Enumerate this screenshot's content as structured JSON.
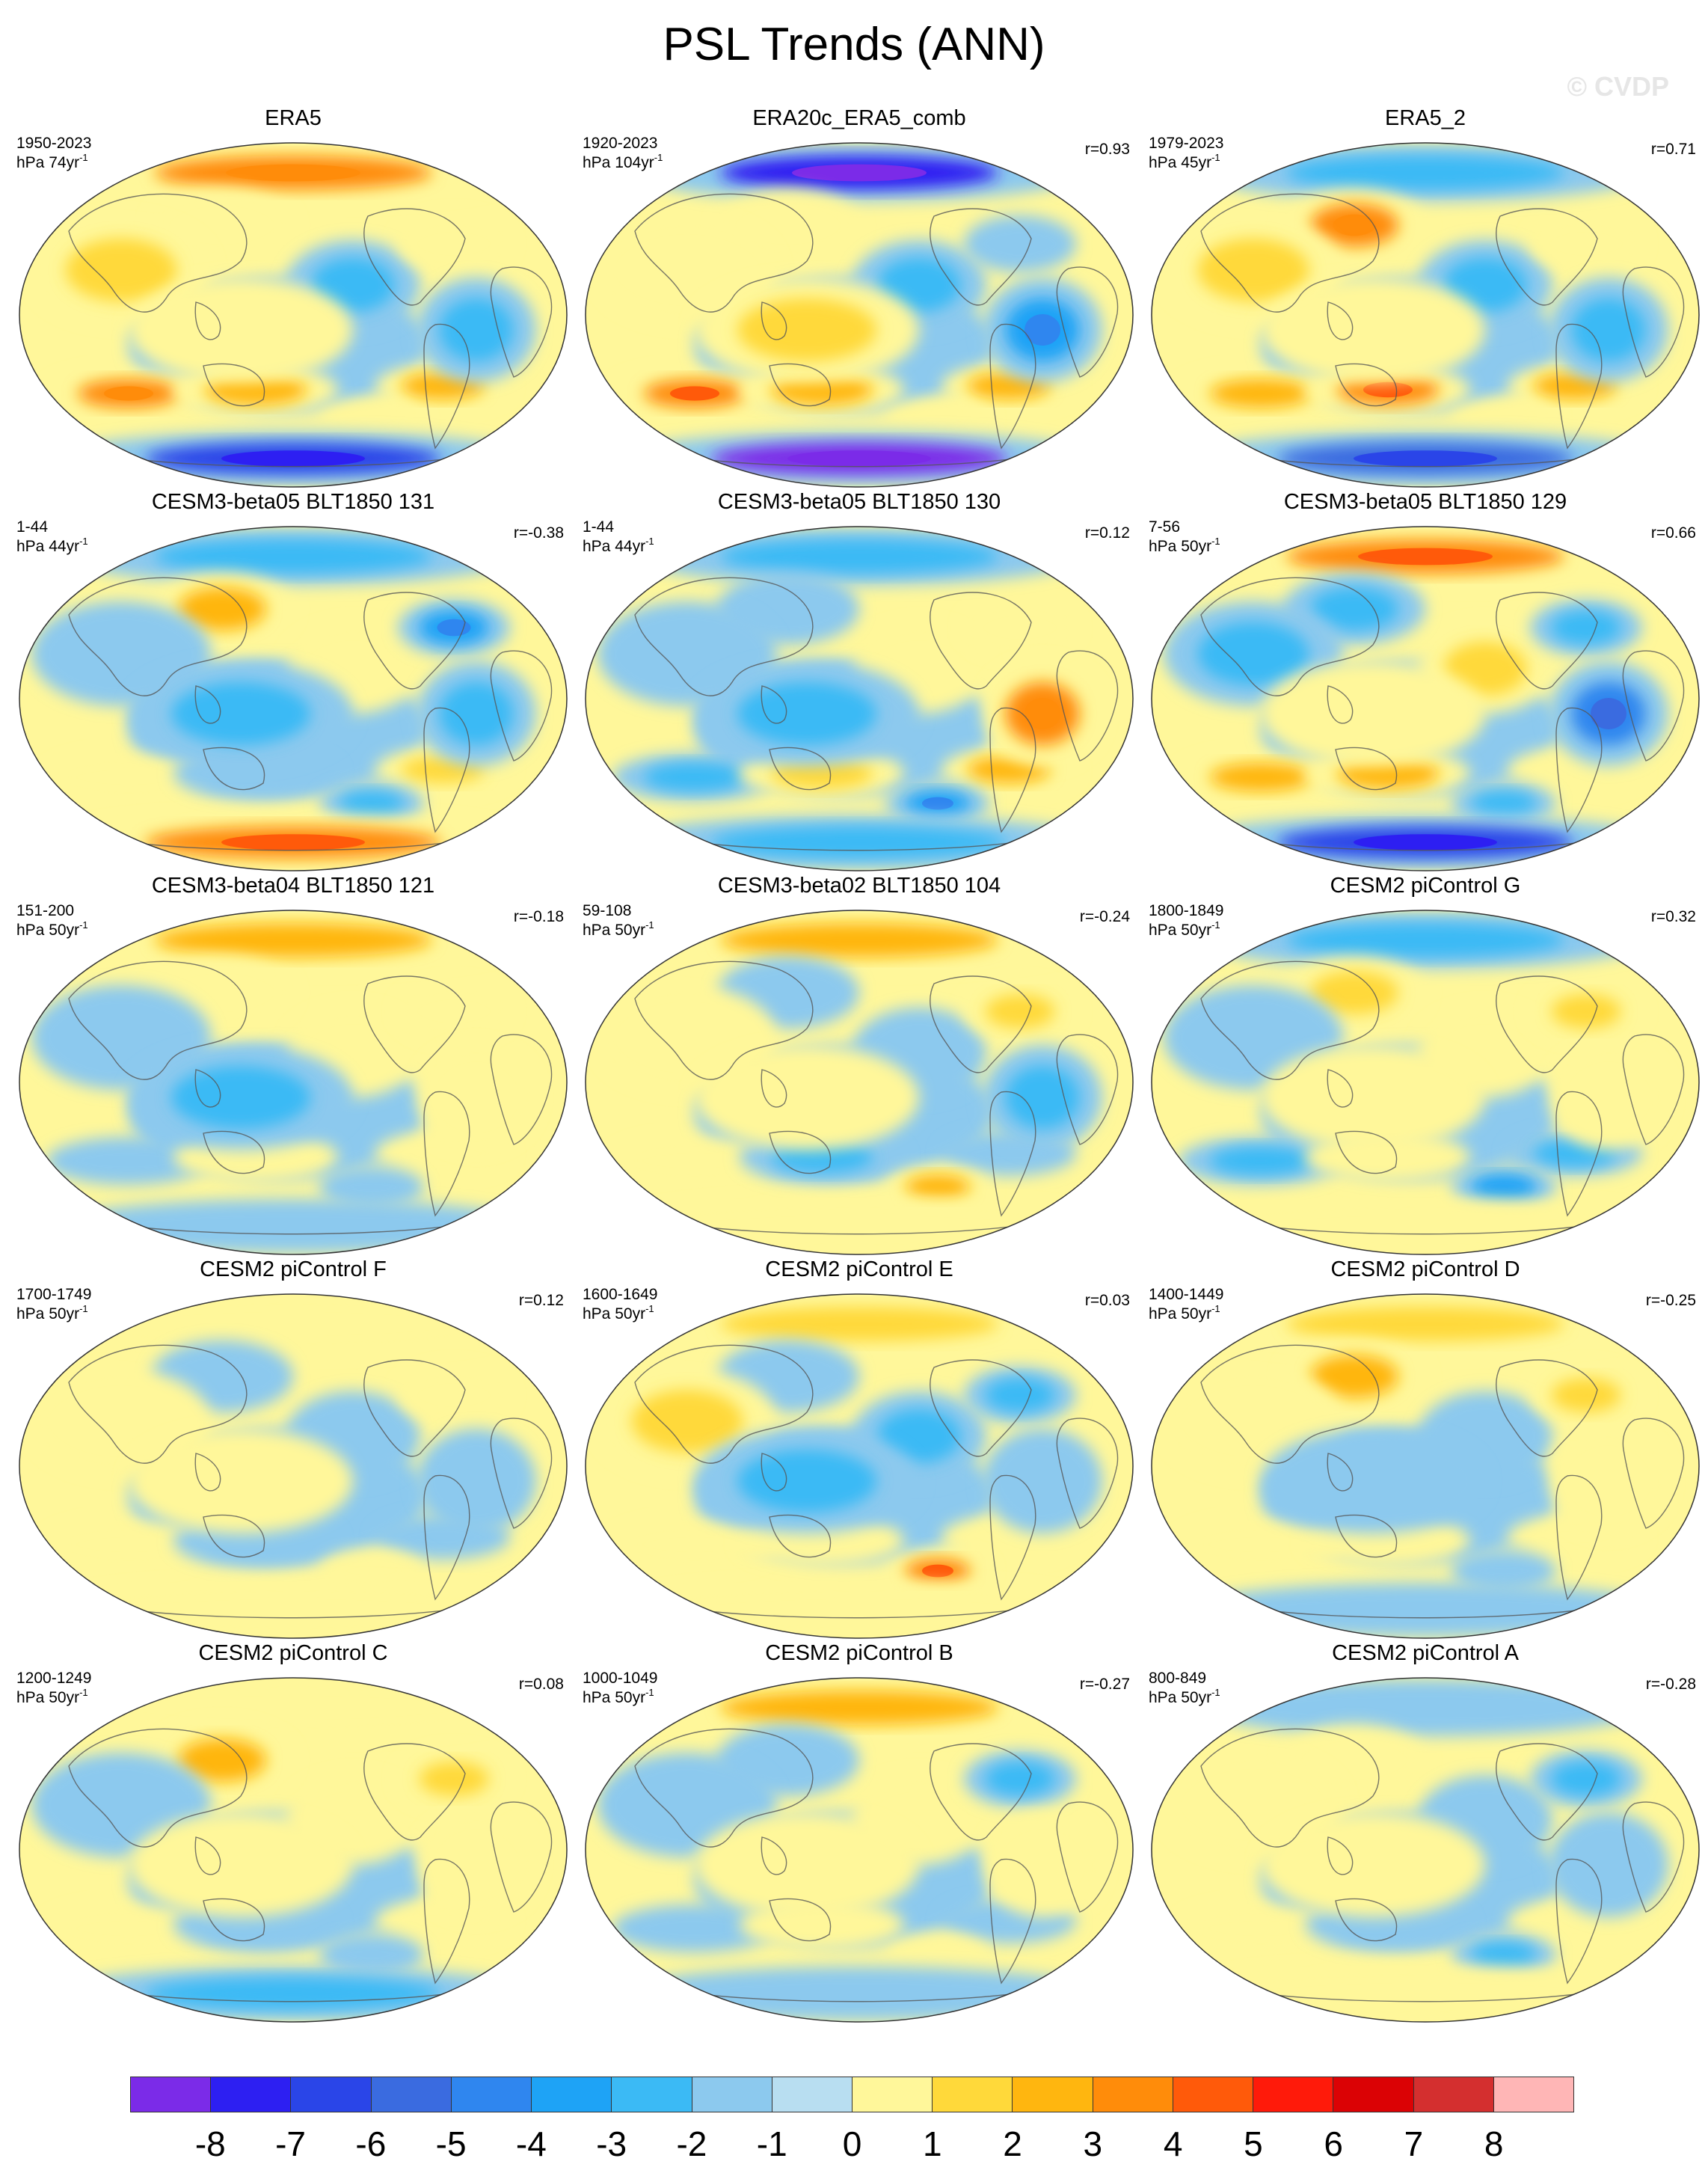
{
  "title": "PSL Trends (ANN)",
  "watermark": "© CVDP",
  "panels": [
    {
      "title": "ERA5",
      "period": "1950-2023",
      "units_value": "74",
      "corr": "",
      "pattern": [
        3,
        0.8,
        1,
        -1.5,
        3.2,
        2.2,
        0.9,
        2.3,
        0.6,
        0.5,
        -1.2,
        -6
      ]
    },
    {
      "title": "ERA20c_ERA5_comb",
      "period": "1920-2023",
      "units_value": "104",
      "corr": "r=0.93",
      "pattern": [
        -6.5,
        0.8,
        0.5,
        -1.2,
        3.5,
        2.2,
        1.2,
        2.6,
        -0.8,
        0.5,
        -3,
        -8.5
      ]
    },
    {
      "title": "ERA5_2",
      "period": "1979-2023",
      "units_value": "45",
      "corr": "r=0.71",
      "pattern": [
        -1.2,
        3,
        1,
        -1.2,
        2.8,
        3.5,
        0.8,
        2.6,
        0.6,
        0.6,
        -1.5,
        -4.5
      ]
    },
    {
      "title": "CESM3-beta05 BLT1850 131",
      "period": "1-44",
      "units_value": "44",
      "corr": "r=-0.38",
      "pattern": [
        -1.2,
        2.4,
        -0.8,
        0.5,
        0.5,
        -0.8,
        -1.2,
        1,
        -3,
        -1.5,
        -1.2,
        3.5
      ]
    },
    {
      "title": "CESM3-beta05 BLT1850 130",
      "period": "1-44",
      "units_value": "44",
      "corr": "r=0.12",
      "pattern": [
        -1.5,
        -0.8,
        -0.6,
        0.6,
        -1.5,
        1.2,
        -1.2,
        2,
        0.6,
        -3,
        3.2,
        -1.2
      ]
    },
    {
      "title": "CESM3-beta05 BLT1850 129",
      "period": "7-56",
      "units_value": "50",
      "corr": "r=0.66",
      "pattern": [
        3.5,
        -1.5,
        -1.2,
        1.2,
        2.5,
        2,
        0.8,
        0.6,
        -1.5,
        -2,
        -3.5,
        -6
      ]
    },
    {
      "title": "CESM3-beta04 BLT1850 121",
      "period": "151-200",
      "units_value": "50",
      "corr": "r=-0.18",
      "pattern": [
        2,
        0.5,
        -0.8,
        0.6,
        -0.8,
        0.5,
        -1.2,
        0.8,
        0.5,
        -0.8,
        0.6,
        -0.8
      ]
    },
    {
      "title": "CESM3-beta02 BLT1850 104",
      "period": "59-108",
      "units_value": "50",
      "corr": "r=-0.24",
      "pattern": [
        2.8,
        -0.8,
        0.5,
        -0.8,
        0.6,
        -1.2,
        0.5,
        -0.8,
        1.5,
        2.2,
        -1.5,
        0.6
      ]
    },
    {
      "title": "CESM2 piControl G",
      "period": "1800-1849",
      "units_value": "50",
      "corr": "r=0.32",
      "pattern": [
        -1.2,
        1.2,
        -0.8,
        0.5,
        -1.2,
        0.6,
        0.6,
        -1.5,
        1.2,
        -2.5,
        0.6,
        0.5
      ]
    },
    {
      "title": "CESM2 piControl F",
      "period": "1700-1749",
      "units_value": "50",
      "corr": "r=0.12",
      "pattern": [
        0.6,
        -0.8,
        0.5,
        -0.8,
        0.6,
        -0.8,
        0.5,
        -0.8,
        0.6,
        0.5,
        -0.8,
        0.6
      ]
    },
    {
      "title": "CESM2 piControl E",
      "period": "1600-1649",
      "units_value": "50",
      "corr": "r=0.03",
      "pattern": [
        1.5,
        -0.8,
        1.5,
        -1.2,
        0.6,
        0.5,
        -1.2,
        0.6,
        -1.2,
        3.5,
        -0.8,
        0.5
      ]
    },
    {
      "title": "CESM2 piControl D",
      "period": "1400-1449",
      "units_value": "50",
      "corr": "r=-0.25",
      "pattern": [
        1.2,
        2.5,
        0.5,
        -0.8,
        0.6,
        0.5,
        -0.8,
        0.6,
        1.5,
        -0.8,
        0.5,
        -0.8
      ]
    },
    {
      "title": "CESM2 piControl C",
      "period": "1200-1249",
      "units_value": "50",
      "corr": "r=0.08",
      "pattern": [
        0.6,
        2.2,
        -0.8,
        0.5,
        0.6,
        -0.8,
        0.6,
        0.5,
        1.5,
        -0.8,
        0.5,
        -1.2
      ]
    },
    {
      "title": "CESM2 piControl B",
      "period": "1000-1049",
      "units_value": "50",
      "corr": "r=-0.27",
      "pattern": [
        2.5,
        -0.8,
        -0.8,
        0.5,
        -0.8,
        0.6,
        0.5,
        -0.8,
        -1.5,
        0.6,
        0.5,
        -0.8
      ]
    },
    {
      "title": "CESM2 piControl A",
      "period": "800-849",
      "units_value": "50",
      "corr": "r=-0.28",
      "pattern": [
        -0.8,
        0.5,
        0.6,
        -0.8,
        0.6,
        -0.8,
        0.5,
        0.6,
        -1.2,
        -1.5,
        -0.8,
        0.5
      ]
    }
  ],
  "units_prefix": "hPa ",
  "units_suffix": "yr",
  "units_exponent": "-1",
  "colorbar": {
    "colors": [
      "#7b2be8",
      "#2d1ff2",
      "#2a45e8",
      "#3a6be0",
      "#2f86ef",
      "#1ea3f6",
      "#3bbaf5",
      "#8cc9ee",
      "#b8def1",
      "#fff79a",
      "#ffd93a",
      "#ffb60f",
      "#ff8c0a",
      "#ff5a0a",
      "#ff1a0a",
      "#db0205",
      "#d42f2f",
      "#ffb6b6"
    ],
    "labels": [
      "-8",
      "-7",
      "-6",
      "-5",
      "-4",
      "-3",
      "-2",
      "-1",
      "0",
      "1",
      "2",
      "3",
      "4",
      "5",
      "6",
      "7",
      "8"
    ]
  }
}
